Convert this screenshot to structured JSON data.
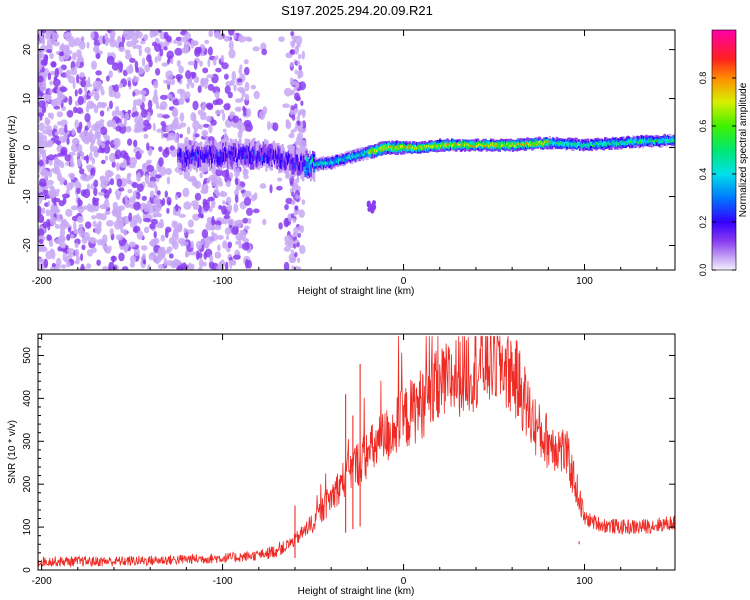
{
  "title": "S197.2025.294.20.09.R21",
  "chart_data": [
    {
      "type": "heatmap",
      "description_role": "spectrogram",
      "xlabel": "Height of straight line (km)",
      "ylabel": "Frequency (Hz)",
      "xlim": [
        -202,
        150
      ],
      "ylim": [
        -25,
        24
      ],
      "xticks": [
        -200,
        -100,
        0,
        100
      ],
      "xtick_labels": [
        "-200",
        "-100",
        "0",
        "100"
      ],
      "yticks": [
        -20,
        -10,
        0,
        10,
        20
      ],
      "ytick_labels": [
        "-20",
        "-10",
        "0",
        "10",
        "20"
      ],
      "grid": false,
      "ridge": {
        "x": [
          -120,
          -100,
          -90,
          -80,
          -70,
          -62,
          -55,
          -50,
          -45,
          -40,
          -35,
          -30,
          -25,
          -20,
          -15,
          -10,
          -5,
          0,
          10,
          20,
          40,
          60,
          80,
          100,
          120,
          150
        ],
        "freq": [
          -2,
          -1.5,
          -1.5,
          -1.5,
          -2,
          -3,
          -3.5,
          -3.5,
          -3.2,
          -3,
          -2.5,
          -2,
          -1.5,
          -1,
          -0.5,
          0,
          0,
          0,
          0,
          0.5,
          0.5,
          0.5,
          1,
          0.5,
          1,
          1.5
        ]
      },
      "colorbar": {
        "label": "Normalized spectral amplitude",
        "ticks": [
          0.0,
          0.2,
          0.4,
          0.6,
          0.8
        ],
        "tick_labels": [
          "0.0",
          "0.2",
          "0.4",
          "0.6",
          "0.8"
        ],
        "range": [
          0,
          1
        ]
      }
    },
    {
      "type": "line",
      "xlabel": "Height of straight line (km)",
      "ylabel": "SNR (10 * v/v)",
      "xlim": [
        -202,
        150
      ],
      "ylim": [
        0,
        550
      ],
      "xticks": [
        -200,
        -100,
        0,
        100
      ],
      "xtick_labels": [
        "-200",
        "-100",
        "0",
        "100"
      ],
      "yticks": [
        0,
        100,
        200,
        300,
        400,
        500
      ],
      "ytick_labels": [
        "0",
        "100",
        "200",
        "300",
        "400",
        "500"
      ],
      "grid": false,
      "series": [
        {
          "name": "SNR",
          "color": "#ee2a24",
          "x": [
            -202,
            -180,
            -160,
            -140,
            -120,
            -100,
            -90,
            -80,
            -75,
            -70,
            -65,
            -60,
            -55,
            -50,
            -45,
            -40,
            -35,
            -30,
            -25,
            -20,
            -15,
            -10,
            -5,
            0,
            5,
            10,
            15,
            20,
            25,
            30,
            35,
            40,
            45,
            50,
            55,
            60,
            65,
            70,
            75,
            80,
            85,
            90,
            95,
            100,
            110,
            120,
            130,
            140,
            150
          ],
          "values": [
            20,
            20,
            20,
            22,
            25,
            28,
            30,
            35,
            40,
            45,
            55,
            70,
            90,
            110,
            140,
            170,
            200,
            230,
            250,
            270,
            290,
            310,
            330,
            350,
            370,
            390,
            410,
            425,
            440,
            455,
            465,
            475,
            485,
            490,
            480,
            460,
            420,
            360,
            320,
            300,
            290,
            270,
            200,
            120,
            105,
            100,
            100,
            105,
            110
          ],
          "spikes": [
            {
              "x": -32,
              "value": 410
            },
            {
              "x": -28,
              "value": 360
            },
            {
              "x": -24,
              "value": 480
            },
            {
              "x": -60,
              "value": 150
            },
            {
              "x": 97,
              "value": 60
            }
          ]
        }
      ]
    }
  ]
}
